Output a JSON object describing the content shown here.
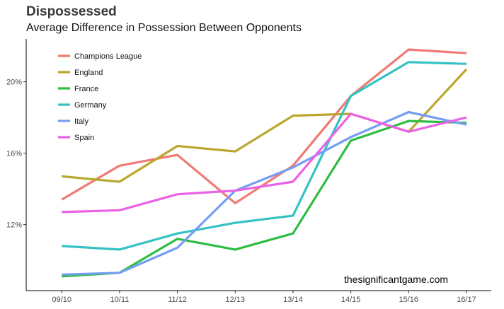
{
  "title": "Dispossessed",
  "subtitle": "Average Difference in Possession Between Opponents",
  "caption": "thesignificantgame.com",
  "chart_data": {
    "type": "line",
    "title": "Dispossessed",
    "subtitle": "Average Difference in Possession Between Opponents",
    "xlabel": "",
    "ylabel": "",
    "x": [
      "09/10",
      "10/11",
      "11/12",
      "12/13",
      "13/14",
      "14/15",
      "15/16",
      "16/17"
    ],
    "y_ticks": [
      12,
      16,
      20
    ],
    "y_tick_labels": [
      "12%",
      "16%",
      "20%"
    ],
    "ylim": [
      8.3,
      22.4
    ],
    "grid": false,
    "legend_position": "top-left",
    "series": [
      {
        "name": "Champions League",
        "color": "#F07A74",
        "values": [
          13.4,
          15.3,
          15.9,
          13.2,
          15.3,
          19.2,
          21.8,
          21.6
        ]
      },
      {
        "name": "England",
        "color": "#B9A72E",
        "values": [
          14.7,
          14.4,
          16.4,
          16.1,
          18.1,
          18.2,
          17.2,
          20.7
        ]
      },
      {
        "name": "France",
        "color": "#2EBD42",
        "values": [
          9.1,
          9.3,
          11.2,
          10.6,
          11.5,
          16.7,
          17.8,
          17.7
        ]
      },
      {
        "name": "Germany",
        "color": "#36C2C4",
        "values": [
          10.8,
          10.6,
          11.5,
          12.1,
          12.5,
          19.2,
          21.1,
          21.0
        ]
      },
      {
        "name": "Italy",
        "color": "#759EF2",
        "values": [
          9.2,
          9.3,
          10.7,
          13.9,
          15.2,
          16.9,
          18.3,
          17.6
        ]
      },
      {
        "name": "Spain",
        "color": "#EB62E6",
        "values": [
          12.7,
          12.8,
          13.7,
          13.9,
          14.4,
          18.2,
          17.2,
          18.0
        ]
      }
    ]
  }
}
